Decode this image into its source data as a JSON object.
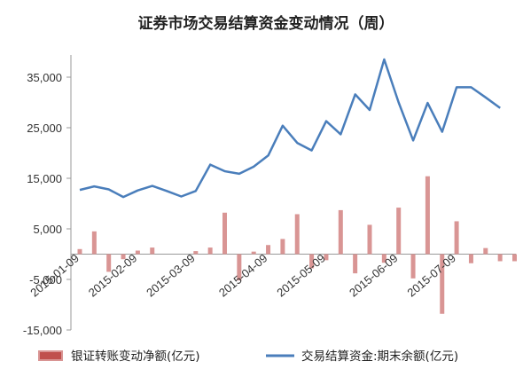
{
  "chart_data": {
    "type": "bar+line",
    "title": "证券市场交易结算资金变动情况（周）",
    "y_ticks": [
      "35,000",
      "25,000",
      "15,000",
      "5,000",
      "-5,000",
      "-15,000"
    ],
    "y_tick_values": [
      35000,
      25000,
      15000,
      5000,
      -5000,
      -15000
    ],
    "ylim": [
      -16000,
      40000
    ],
    "x_ticks": [
      "2015-01-09",
      "2015-02-09",
      "2015-03-09",
      "2015-04-09",
      "2015-05-09",
      "2015-06-09",
      "2015-07-09"
    ],
    "x_tick_index": [
      0,
      4,
      8,
      13,
      17,
      22,
      26
    ],
    "series": [
      {
        "name": "银证转账变动净额(亿元)",
        "type": "bar",
        "color": "#d99594",
        "values": [
          1000,
          4500,
          -3500,
          -1000,
          700,
          1300,
          null,
          null,
          600,
          1300,
          8200,
          -5200,
          500,
          1800,
          3000,
          7900,
          -2800,
          -1200,
          8700,
          -3800,
          5800,
          -1700,
          9200,
          -4800,
          15400,
          -11800,
          6500,
          -1800,
          1200,
          -1400,
          -1400
        ]
      },
      {
        "name": "交易结算资金:期末余额(亿元)",
        "type": "line",
        "color": "#4a7ebb",
        "values": [
          12700,
          13400,
          12800,
          11300,
          12600,
          13500,
          12500,
          11400,
          12500,
          17700,
          16400,
          15900,
          17300,
          19500,
          25400,
          22000,
          20500,
          26300,
          23700,
          31600,
          28500,
          38500,
          30000,
          22500,
          29900,
          24200,
          33000,
          33000,
          31000,
          28900,
          null
        ]
      }
    ],
    "legend_position": "bottom",
    "grid": false
  }
}
